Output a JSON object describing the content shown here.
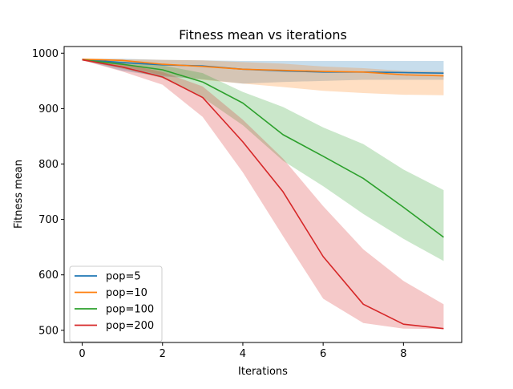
{
  "chart_data": {
    "type": "line",
    "title": "Fitness mean vs iterations",
    "xlabel": "Iterations",
    "ylabel": "Fitness mean",
    "xlim": [
      -0.45,
      9.45
    ],
    "ylim": [
      478,
      1012
    ],
    "xticks": [
      0,
      2,
      4,
      6,
      8
    ],
    "yticks": [
      500,
      600,
      700,
      800,
      900,
      1000
    ],
    "grid": false,
    "legend_position": "lower-left",
    "x": [
      0,
      1,
      2,
      3,
      4,
      5,
      6,
      7,
      8,
      9
    ],
    "series": [
      {
        "name": "pop=5",
        "color": "#1f77b4",
        "values": [
          989,
          983,
          979,
          977,
          971,
          968,
          966,
          966,
          965,
          964
        ],
        "lower": [
          988,
          968,
          958,
          953,
          945,
          948,
          950,
          952,
          952,
          952
        ],
        "upper": [
          990,
          990,
          988,
          987,
          986,
          986,
          986,
          986,
          986,
          986
        ]
      },
      {
        "name": "pop=10",
        "color": "#ff7f0e",
        "values": [
          989,
          987,
          980,
          976,
          971,
          969,
          967,
          966,
          961,
          959
        ],
        "lower": [
          987,
          977,
          960,
          952,
          945,
          939,
          932,
          928,
          925,
          924
        ],
        "upper": [
          990,
          989,
          988,
          987,
          984,
          981,
          976,
          973,
          968,
          967
        ]
      },
      {
        "name": "pop=100",
        "color": "#2ca02c",
        "values": [
          988,
          980,
          970,
          948,
          910,
          853,
          814,
          774,
          722,
          668
        ],
        "lower": [
          987,
          972,
          955,
          920,
          870,
          806,
          760,
          710,
          665,
          625
        ],
        "upper": [
          989,
          985,
          978,
          964,
          930,
          903,
          866,
          836,
          790,
          753
        ]
      },
      {
        "name": "pop=200",
        "color": "#d62728",
        "values": [
          988,
          975,
          957,
          920,
          840,
          750,
          633,
          547,
          511,
          503
        ],
        "lower": [
          987,
          967,
          943,
          885,
          785,
          670,
          557,
          513,
          503,
          502
        ],
        "upper": [
          989,
          982,
          966,
          940,
          880,
          810,
          724,
          646,
          589,
          547
        ]
      }
    ]
  }
}
